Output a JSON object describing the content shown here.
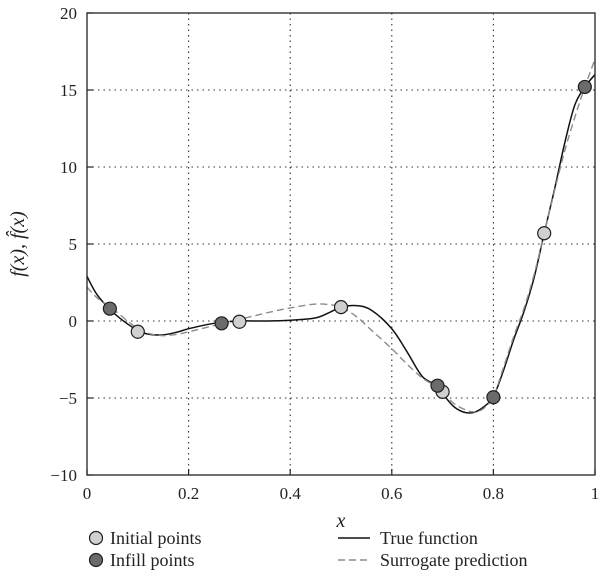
{
  "chart_data": {
    "type": "line",
    "xlabel": "x",
    "ylabel": "f(x), f̂(x)",
    "xlim": [
      0,
      1
    ],
    "ylim": [
      -10,
      20
    ],
    "x_ticks": [
      0,
      0.2,
      0.4,
      0.6,
      0.8,
      1
    ],
    "x_tick_labels": [
      "0",
      "0.2",
      "0.4",
      "0.6",
      "0.8",
      "1"
    ],
    "y_ticks": [
      -10,
      -5,
      0,
      5,
      10,
      15,
      20
    ],
    "y_tick_labels": [
      "−10",
      "−5",
      "0",
      "5",
      "10",
      "15",
      "20"
    ],
    "grid": "dotted",
    "legend": {
      "placement": "bottom",
      "entries": [
        {
          "label": "Initial points",
          "marker": "circle",
          "color": "#d0d0d0"
        },
        {
          "label": "Infill points",
          "marker": "circle",
          "color": "#6b6b6b"
        },
        {
          "label": "True function",
          "style": "solid",
          "color": "#111111"
        },
        {
          "label": "Surrogate prediction",
          "style": "dashed",
          "color": "#8c8c8c"
        }
      ]
    },
    "series": [
      {
        "name": "True function",
        "style": "solid",
        "color": "#111111",
        "x": [
          0,
          0.02,
          0.05,
          0.08,
          0.1,
          0.12,
          0.15,
          0.18,
          0.2,
          0.25,
          0.3,
          0.35,
          0.4,
          0.45,
          0.48,
          0.5,
          0.53,
          0.56,
          0.6,
          0.63,
          0.66,
          0.69,
          0.7,
          0.72,
          0.74,
          0.76,
          0.78,
          0.8,
          0.82,
          0.84,
          0.86,
          0.88,
          0.9,
          0.92,
          0.94,
          0.96,
          0.98,
          1.0
        ],
        "y": [
          2.9,
          1.7,
          0.6,
          -0.2,
          -0.6,
          -0.85,
          -0.9,
          -0.7,
          -0.5,
          -0.15,
          0.0,
          0.0,
          0.05,
          0.2,
          0.6,
          0.9,
          1.0,
          0.7,
          -0.5,
          -2.0,
          -3.6,
          -4.2,
          -4.7,
          -5.5,
          -5.9,
          -5.95,
          -5.6,
          -4.9,
          -3.2,
          -1.2,
          0.6,
          2.8,
          5.7,
          8.5,
          11.5,
          14.0,
          15.2,
          16.0
        ]
      },
      {
        "name": "Surrogate prediction",
        "style": "dashed",
        "color": "#8c8c8c",
        "x": [
          0,
          0.02,
          0.05,
          0.08,
          0.1,
          0.12,
          0.15,
          0.18,
          0.2,
          0.25,
          0.3,
          0.35,
          0.4,
          0.45,
          0.48,
          0.5,
          0.53,
          0.56,
          0.6,
          0.63,
          0.66,
          0.69,
          0.7,
          0.72,
          0.74,
          0.76,
          0.78,
          0.8,
          0.82,
          0.84,
          0.86,
          0.88,
          0.9,
          0.92,
          0.94,
          0.96,
          0.98,
          1.0
        ],
        "y": [
          2.2,
          1.5,
          0.8,
          0.0,
          -0.5,
          -0.8,
          -0.95,
          -0.85,
          -0.7,
          -0.3,
          0.1,
          0.5,
          0.85,
          1.1,
          1.05,
          0.9,
          0.3,
          -0.6,
          -1.8,
          -2.8,
          -3.7,
          -4.3,
          -4.6,
          -5.3,
          -5.7,
          -5.9,
          -5.7,
          -4.9,
          -3.0,
          -1.0,
          0.8,
          3.0,
          5.7,
          8.4,
          11.0,
          13.2,
          15.2,
          17.0
        ]
      }
    ],
    "points": [
      {
        "name": "Initial points",
        "color": "#d0d0d0",
        "x": [
          0.1,
          0.3,
          0.5,
          0.7,
          0.9
        ],
        "y": [
          -0.7,
          -0.05,
          0.9,
          -4.6,
          5.7
        ]
      },
      {
        "name": "Infill points",
        "color": "#6b6b6b",
        "x": [
          0.045,
          0.265,
          0.69,
          0.8,
          0.98
        ],
        "y": [
          0.8,
          -0.15,
          -4.2,
          -4.95,
          15.2
        ]
      }
    ]
  }
}
